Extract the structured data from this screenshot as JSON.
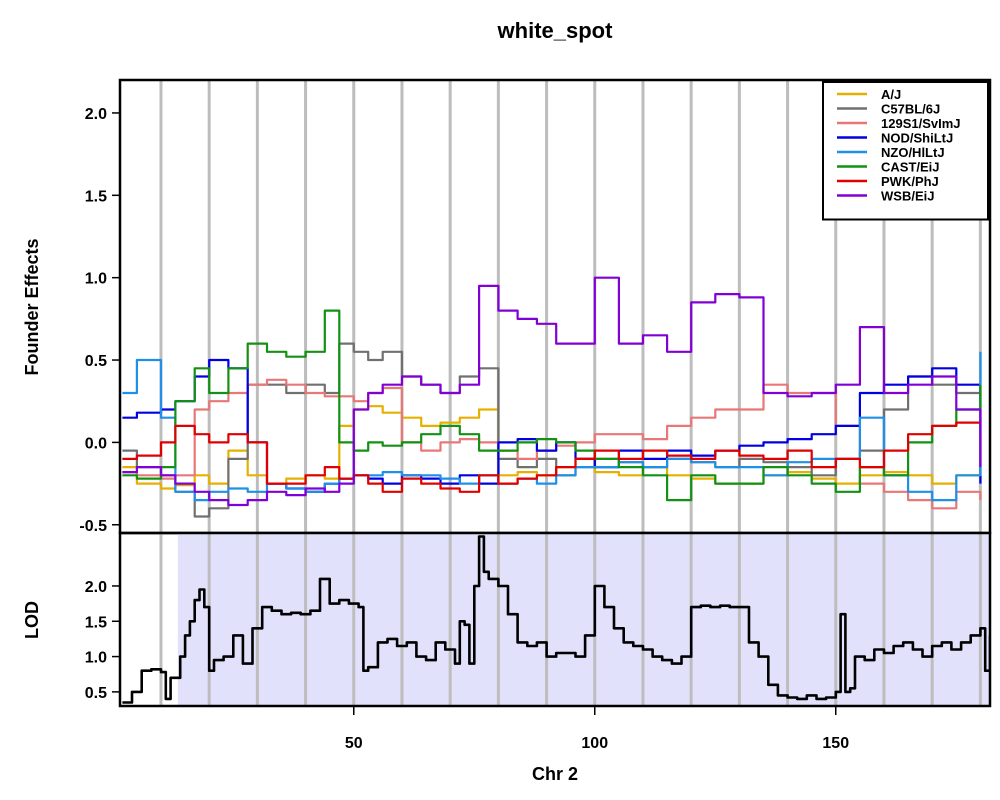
{
  "chart_data": {
    "type": "line",
    "title": "white_spot",
    "xlabel": "Chr 2",
    "xlim": [
      1.5,
      182
    ],
    "x_ticks": [
      50,
      100,
      150
    ],
    "vertical_guides": [
      10,
      20,
      30,
      40,
      50,
      60,
      70,
      80,
      90,
      100,
      110,
      120,
      130,
      140,
      150,
      160,
      170,
      180
    ],
    "shaded_x_range": [
      13.5,
      182
    ],
    "colors": {
      "guide": "#bdbdbd",
      "shade": "#e1e1fb",
      "lod_line": "#000000"
    },
    "effects_panel": {
      "ylabel": "Founder Effects",
      "ylim": [
        -0.55,
        2.2
      ],
      "y_ticks": [
        {
          "value": -0.5,
          "label": "-0.5"
        },
        {
          "value": 0.0,
          "label": "0.0"
        },
        {
          "value": 0.5,
          "label": "0.5"
        },
        {
          "value": 1.0,
          "label": "1.0"
        },
        {
          "value": 1.5,
          "label": "1.5"
        },
        {
          "value": 2.0,
          "label": "2.0"
        }
      ],
      "legend_position": "top-right",
      "series": [
        {
          "name": "A/J",
          "color": "#e6b000",
          "x": [
            2,
            5,
            10,
            13,
            17,
            20,
            24,
            28,
            32,
            36,
            40,
            44,
            47,
            50,
            53,
            56,
            60,
            64,
            68,
            72,
            76,
            80,
            84,
            88,
            92,
            96,
            100,
            105,
            110,
            115,
            120,
            125,
            130,
            135,
            140,
            145,
            150,
            155,
            160,
            165,
            170,
            175,
            180
          ],
          "values": [
            -0.15,
            -0.25,
            -0.28,
            -0.26,
            -0.2,
            -0.25,
            -0.05,
            -0.2,
            -0.25,
            -0.22,
            -0.2,
            -0.22,
            0.1,
            0.2,
            0.22,
            0.18,
            0.15,
            0.1,
            0.12,
            0.15,
            0.2,
            -0.2,
            -0.18,
            -0.2,
            -0.15,
            -0.1,
            -0.18,
            -0.2,
            -0.15,
            -0.2,
            -0.22,
            -0.25,
            -0.25,
            -0.2,
            -0.18,
            -0.22,
            -0.25,
            -0.2,
            -0.18,
            -0.2,
            -0.25,
            -0.2,
            -0.22
          ]
        },
        {
          "name": "C57BL/6J",
          "color": "#707070",
          "x": [
            2,
            5,
            10,
            13,
            17,
            20,
            24,
            28,
            32,
            36,
            40,
            44,
            47,
            50,
            53,
            56,
            60,
            64,
            68,
            72,
            76,
            80,
            84,
            88,
            92,
            96,
            100,
            105,
            110,
            115,
            120,
            125,
            130,
            135,
            140,
            145,
            150,
            155,
            160,
            165,
            170,
            175,
            180
          ],
          "values": [
            -0.05,
            -0.15,
            -0.2,
            -0.3,
            -0.45,
            -0.4,
            -0.1,
            0.35,
            0.35,
            0.3,
            0.35,
            0.3,
            0.6,
            0.55,
            0.5,
            0.55,
            0.4,
            0.35,
            0.3,
            0.4,
            0.45,
            -0.1,
            -0.15,
            -0.1,
            -0.2,
            -0.15,
            -0.1,
            -0.12,
            -0.15,
            -0.1,
            -0.12,
            -0.15,
            -0.1,
            -0.12,
            -0.15,
            -0.2,
            -0.1,
            -0.05,
            0.2,
            0.4,
            0.35,
            0.3,
            0.35
          ]
        },
        {
          "name": "129S1/SvImJ",
          "color": "#e87878",
          "x": [
            2,
            5,
            10,
            13,
            17,
            20,
            24,
            28,
            32,
            36,
            40,
            44,
            47,
            50,
            53,
            56,
            60,
            64,
            68,
            72,
            76,
            80,
            84,
            88,
            92,
            96,
            100,
            105,
            110,
            115,
            120,
            125,
            130,
            135,
            140,
            145,
            150,
            155,
            160,
            165,
            170,
            175,
            180
          ],
          "values": [
            -0.18,
            -0.2,
            -0.22,
            -0.2,
            0.2,
            0.25,
            0.3,
            0.35,
            0.38,
            0.35,
            0.3,
            0.28,
            0.28,
            0.25,
            0.3,
            0.33,
            0.0,
            -0.05,
            0.0,
            0.02,
            0.0,
            -0.05,
            -0.1,
            -0.05,
            -0.02,
            0.0,
            0.05,
            0.05,
            0.02,
            0.1,
            0.15,
            0.2,
            0.2,
            0.35,
            0.3,
            0.3,
            0.1,
            -0.25,
            -0.3,
            -0.35,
            -0.4,
            -0.3,
            -0.35
          ]
        },
        {
          "name": "NOD/ShiLtJ",
          "color": "#0000e0",
          "x": [
            2,
            5,
            10,
            13,
            17,
            20,
            24,
            28,
            32,
            36,
            40,
            44,
            47,
            50,
            53,
            56,
            60,
            64,
            68,
            72,
            76,
            80,
            84,
            88,
            92,
            96,
            100,
            105,
            110,
            115,
            120,
            125,
            130,
            135,
            140,
            145,
            150,
            155,
            160,
            165,
            170,
            175,
            180
          ],
          "values": [
            0.15,
            0.18,
            0.2,
            0.25,
            0.4,
            0.5,
            0.45,
            0.0,
            -0.25,
            -0.28,
            -0.3,
            -0.25,
            -0.22,
            -0.2,
            -0.22,
            -0.25,
            -0.2,
            -0.22,
            -0.25,
            -0.2,
            -0.25,
            0.0,
            0.02,
            -0.05,
            0.0,
            -0.1,
            -0.15,
            -0.05,
            -0.1,
            -0.05,
            -0.08,
            -0.05,
            -0.02,
            0.0,
            0.02,
            0.05,
            0.1,
            0.3,
            0.35,
            0.4,
            0.45,
            0.35,
            -0.25
          ]
        },
        {
          "name": "NZO/HlLtJ",
          "color": "#1e90e8",
          "x": [
            2,
            5,
            10,
            13,
            17,
            20,
            24,
            28,
            32,
            36,
            40,
            44,
            47,
            50,
            53,
            56,
            60,
            64,
            68,
            72,
            76,
            80,
            84,
            88,
            92,
            96,
            100,
            105,
            110,
            115,
            120,
            125,
            130,
            135,
            140,
            145,
            150,
            155,
            160,
            165,
            170,
            175,
            180
          ],
          "values": [
            0.3,
            0.5,
            0.15,
            -0.3,
            -0.35,
            -0.3,
            -0.28,
            -0.3,
            -0.25,
            -0.28,
            -0.3,
            -0.25,
            -0.22,
            -0.2,
            -0.2,
            -0.18,
            -0.2,
            -0.2,
            -0.22,
            -0.25,
            -0.2,
            -0.25,
            -0.22,
            -0.25,
            -0.2,
            -0.15,
            -0.15,
            -0.12,
            -0.15,
            -0.1,
            -0.12,
            -0.15,
            -0.15,
            -0.2,
            -0.12,
            -0.1,
            -0.1,
            0.15,
            -0.2,
            -0.3,
            -0.35,
            -0.2,
            0.55
          ]
        },
        {
          "name": "CAST/EiJ",
          "color": "#139113",
          "x": [
            2,
            5,
            10,
            13,
            17,
            20,
            24,
            28,
            32,
            36,
            40,
            44,
            47,
            50,
            53,
            56,
            60,
            64,
            68,
            72,
            76,
            80,
            84,
            88,
            92,
            96,
            100,
            105,
            110,
            115,
            120,
            125,
            130,
            135,
            140,
            145,
            150,
            155,
            160,
            165,
            170,
            175,
            180
          ],
          "values": [
            -0.2,
            -0.22,
            -0.15,
            0.25,
            0.45,
            0.3,
            0.45,
            0.6,
            0.55,
            0.52,
            0.55,
            0.8,
            0.0,
            -0.05,
            0.0,
            -0.02,
            0.0,
            0.05,
            0.1,
            0.05,
            -0.05,
            -0.05,
            0.0,
            0.02,
            0.0,
            -0.05,
            -0.1,
            -0.15,
            -0.2,
            -0.35,
            -0.2,
            -0.25,
            -0.25,
            -0.15,
            -0.2,
            -0.25,
            -0.3,
            -0.15,
            -0.2,
            0.0,
            0.1,
            0.2,
            0.35
          ]
        },
        {
          "name": "PWK/PhJ",
          "color": "#e00000",
          "x": [
            2,
            5,
            10,
            13,
            17,
            20,
            24,
            28,
            32,
            36,
            40,
            44,
            47,
            50,
            53,
            56,
            60,
            64,
            68,
            72,
            76,
            80,
            84,
            88,
            92,
            96,
            100,
            105,
            110,
            115,
            120,
            125,
            130,
            135,
            140,
            145,
            150,
            155,
            160,
            165,
            170,
            175,
            180
          ],
          "values": [
            -0.1,
            -0.08,
            0.0,
            0.1,
            0.05,
            0.0,
            0.05,
            0.0,
            -0.25,
            -0.25,
            -0.2,
            -0.15,
            -0.22,
            -0.2,
            -0.25,
            -0.3,
            -0.22,
            -0.25,
            -0.28,
            -0.3,
            -0.2,
            -0.25,
            -0.22,
            -0.2,
            -0.15,
            -0.1,
            -0.05,
            -0.1,
            -0.05,
            -0.08,
            -0.1,
            -0.05,
            -0.08,
            -0.1,
            -0.05,
            -0.15,
            -0.1,
            -0.15,
            -0.05,
            0.05,
            0.1,
            0.12,
            0.1
          ]
        },
        {
          "name": "WSB/EiJ",
          "color": "#8000d6",
          "x": [
            2,
            5,
            10,
            13,
            17,
            20,
            24,
            28,
            32,
            36,
            40,
            44,
            47,
            50,
            53,
            56,
            60,
            64,
            68,
            72,
            76,
            80,
            84,
            88,
            92,
            96,
            100,
            105,
            110,
            115,
            120,
            125,
            130,
            135,
            140,
            145,
            150,
            155,
            160,
            165,
            170,
            175,
            180
          ],
          "values": [
            -0.18,
            -0.15,
            -0.2,
            -0.25,
            -0.3,
            -0.35,
            -0.38,
            -0.35,
            -0.3,
            -0.32,
            -0.28,
            -0.3,
            -0.25,
            0.2,
            0.3,
            0.35,
            0.4,
            0.35,
            0.3,
            0.35,
            0.95,
            0.8,
            0.75,
            0.72,
            0.6,
            0.6,
            1.0,
            0.6,
            0.65,
            0.55,
            0.85,
            0.9,
            0.88,
            0.3,
            0.28,
            0.3,
            0.35,
            0.7,
            0.3,
            0.35,
            0.4,
            0.2,
            -0.15
          ]
        }
      ]
    },
    "lod_panel": {
      "ylabel": "LOD",
      "ylim": [
        0.3,
        2.75
      ],
      "y_ticks": [
        {
          "value": 0.5,
          "label": "0.5"
        },
        {
          "value": 1.0,
          "label": "1.0"
        },
        {
          "value": 1.5,
          "label": "1.5"
        },
        {
          "value": 2.0,
          "label": "2.0"
        }
      ],
      "series": [
        {
          "name": "",
          "color": "#000000",
          "x": [
            2,
            4,
            6,
            8,
            10,
            11,
            12,
            14,
            15,
            16,
            17,
            18,
            19,
            20,
            21,
            23,
            25,
            27,
            29,
            31,
            33,
            35,
            37,
            39,
            41,
            43,
            45,
            47,
            49,
            51,
            52,
            53,
            55,
            57,
            59,
            61,
            63,
            65,
            67,
            69,
            71,
            72,
            73,
            74,
            75,
            76,
            77,
            78,
            80,
            82,
            84,
            86,
            88,
            90,
            92,
            94,
            96,
            98,
            100,
            102,
            104,
            106,
            108,
            110,
            112,
            114,
            116,
            118,
            120,
            122,
            124,
            126,
            128,
            130,
            132,
            134,
            136,
            138,
            140,
            142,
            144,
            146,
            148,
            150,
            151,
            152,
            153,
            154,
            156,
            158,
            160,
            162,
            164,
            166,
            168,
            170,
            172,
            174,
            176,
            178,
            180,
            181,
            182
          ],
          "values": [
            0.35,
            0.5,
            0.8,
            0.82,
            0.78,
            0.4,
            0.7,
            1.0,
            1.3,
            1.5,
            1.8,
            1.95,
            1.7,
            0.8,
            0.95,
            1.0,
            1.3,
            0.9,
            1.4,
            1.7,
            1.65,
            1.6,
            1.62,
            1.6,
            1.65,
            2.1,
            1.75,
            1.8,
            1.75,
            1.7,
            0.8,
            0.85,
            1.2,
            1.25,
            1.15,
            1.2,
            1.0,
            0.95,
            1.2,
            1.1,
            0.9,
            1.5,
            1.45,
            0.9,
            2.0,
            2.7,
            2.2,
            2.1,
            2.0,
            1.6,
            1.2,
            1.15,
            1.2,
            1.0,
            1.05,
            1.05,
            1.0,
            1.3,
            2.0,
            1.7,
            1.4,
            1.2,
            1.15,
            1.1,
            1.0,
            0.95,
            0.9,
            1.0,
            1.7,
            1.72,
            1.7,
            1.72,
            1.7,
            1.7,
            1.2,
            1.0,
            0.6,
            0.45,
            0.42,
            0.4,
            0.45,
            0.4,
            0.42,
            0.5,
            1.6,
            0.5,
            0.55,
            1.0,
            0.95,
            1.1,
            1.05,
            1.15,
            1.2,
            1.1,
            1.0,
            1.15,
            1.2,
            1.1,
            1.2,
            1.3,
            1.4,
            0.8,
            1.3
          ]
        }
      ]
    }
  }
}
